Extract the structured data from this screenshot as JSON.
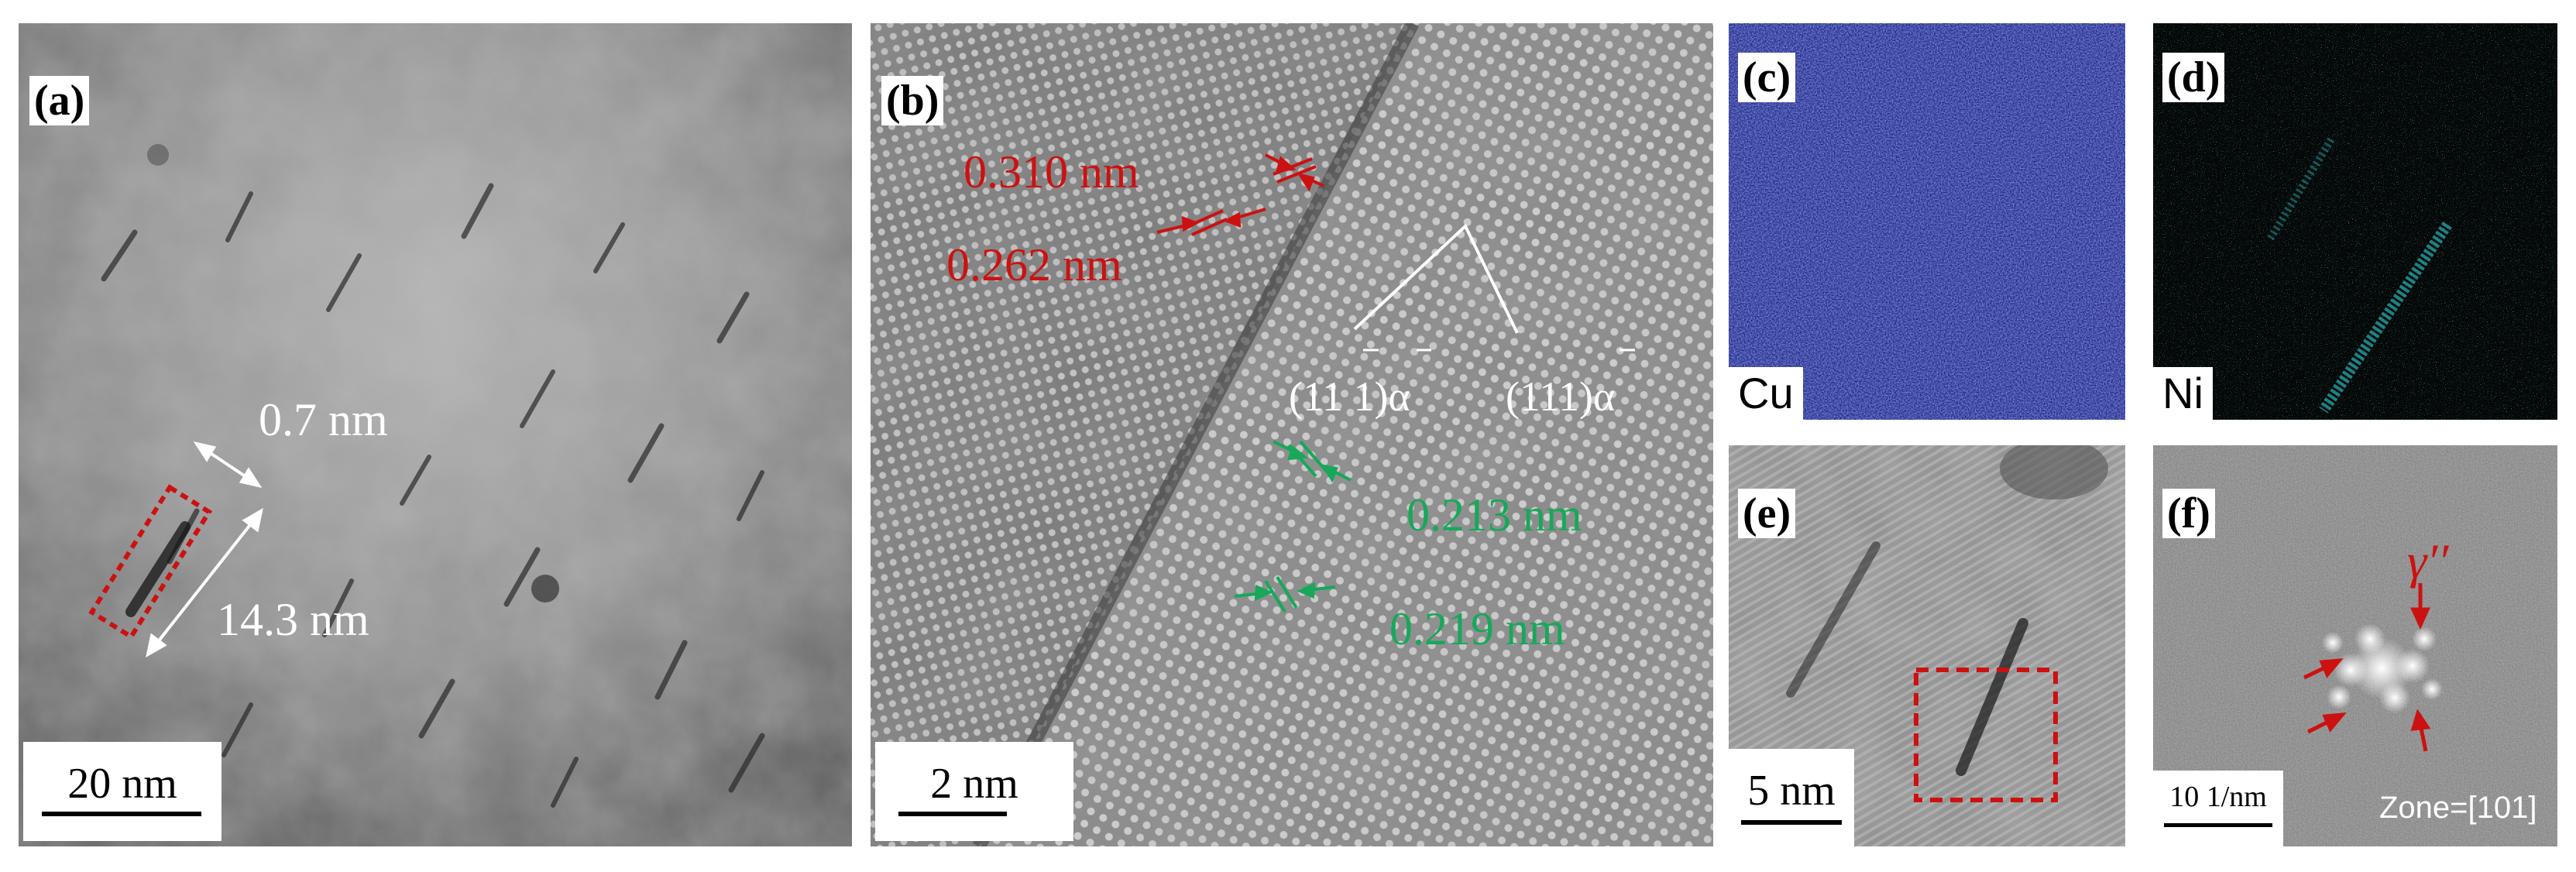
{
  "panels": {
    "a": {
      "label": "(a)",
      "scale": "20 nm",
      "width_label": "0.7 nm",
      "length_label": "14.3 nm"
    },
    "b": {
      "label": "(b)",
      "scale": "2 nm",
      "spacing_red_1": "0.310 nm",
      "spacing_red_2": "0.262 nm",
      "spacing_green_1": "0.213 nm",
      "spacing_green_2": "0.219 nm",
      "plane_1": "(11 1)α",
      "plane_2": "(111)α"
    },
    "c": {
      "label": "(c)",
      "element": "Cu"
    },
    "d": {
      "label": "(d)",
      "element": "Ni"
    },
    "e": {
      "label": "(e)",
      "scale": "5 nm"
    },
    "f": {
      "label": "(f)",
      "scale": "10 1/nm",
      "zone": "Zone=[101]",
      "phase": "γ′′"
    }
  },
  "colors": {
    "red_annotation": "#cc1111",
    "green_annotation": "#17a85a",
    "cu_map": "#2633cc",
    "ni_map": "#2ee6e6"
  }
}
